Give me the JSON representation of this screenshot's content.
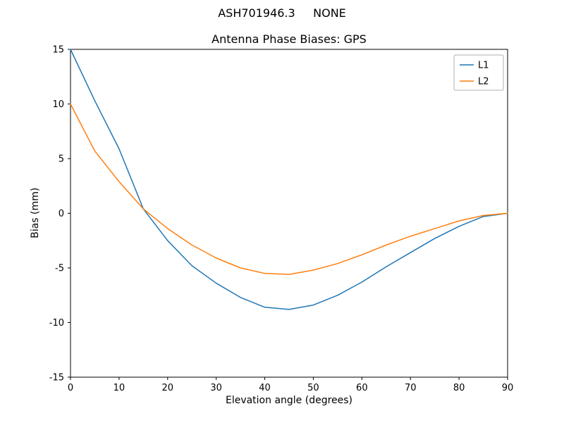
{
  "figure": {
    "suptitle": "ASH701946.3     NONE",
    "background": "#ffffff"
  },
  "chart_data": {
    "type": "line",
    "title": "Antenna Phase Biases: GPS",
    "xlabel": "Elevation angle (degrees)",
    "ylabel": "Bias (mm)",
    "xlim": [
      0,
      90
    ],
    "ylim": [
      -15,
      15
    ],
    "xticks": [
      0,
      10,
      20,
      30,
      40,
      50,
      60,
      70,
      80,
      90
    ],
    "yticks": [
      -15,
      -10,
      -5,
      0,
      5,
      10,
      15
    ],
    "grid": false,
    "legend_position": "upper right",
    "x": [
      0,
      5,
      10,
      15,
      20,
      25,
      30,
      35,
      40,
      45,
      50,
      55,
      60,
      65,
      70,
      75,
      80,
      85,
      90
    ],
    "series": [
      {
        "name": "L1",
        "color": "#1f77b4",
        "values": [
          15.0,
          10.3,
          5.9,
          0.4,
          -2.5,
          -4.8,
          -6.4,
          -7.7,
          -8.6,
          -8.8,
          -8.4,
          -7.5,
          -6.3,
          -4.9,
          -3.6,
          -2.3,
          -1.2,
          -0.3,
          0.0
        ]
      },
      {
        "name": "L2",
        "color": "#ff7f0e",
        "values": [
          10.0,
          5.7,
          2.9,
          0.4,
          -1.4,
          -2.9,
          -4.1,
          -5.0,
          -5.5,
          -5.6,
          -5.2,
          -4.6,
          -3.8,
          -2.9,
          -2.1,
          -1.4,
          -0.7,
          -0.2,
          0.0
        ]
      }
    ]
  }
}
